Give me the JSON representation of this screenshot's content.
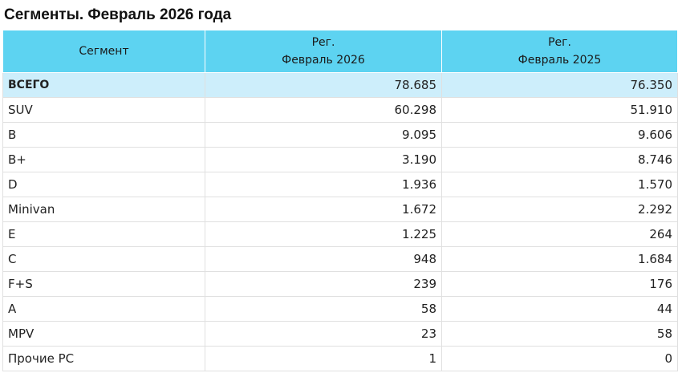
{
  "title": "Сегменты. Февраль 2026 года",
  "table": {
    "headers": {
      "segment": "Сегмент",
      "col1_line1": "Рег.",
      "col1_line2": "Февраль 2026",
      "col2_line1": "Рег.",
      "col2_line2": "Февраль 2025"
    },
    "rows": [
      {
        "segment": "ВСЕГО",
        "feb2026": "78.685",
        "feb2025": "76.350"
      },
      {
        "segment": "SUV",
        "feb2026": "60.298",
        "feb2025": "51.910"
      },
      {
        "segment": "B",
        "feb2026": "9.095",
        "feb2025": "9.606"
      },
      {
        "segment": "B+",
        "feb2026": "3.190",
        "feb2025": "8.746"
      },
      {
        "segment": "D",
        "feb2026": "1.936",
        "feb2025": "1.570"
      },
      {
        "segment": "Minivan",
        "feb2026": "1.672",
        "feb2025": "2.292"
      },
      {
        "segment": "E",
        "feb2026": "1.225",
        "feb2025": "264"
      },
      {
        "segment": "C",
        "feb2026": "948",
        "feb2025": "1.684"
      },
      {
        "segment": "F+S",
        "feb2026": "239",
        "feb2025": "176"
      },
      {
        "segment": "A",
        "feb2026": "58",
        "feb2025": "44"
      },
      {
        "segment": "MPV",
        "feb2026": "23",
        "feb2025": "58"
      },
      {
        "segment": "Прочие PC",
        "feb2026": "1",
        "feb2025": "0"
      }
    ]
  },
  "colors": {
    "header_bg": "#5dd3f1",
    "total_row_bg": "#cdeefb",
    "border": "#e0e0e0"
  }
}
